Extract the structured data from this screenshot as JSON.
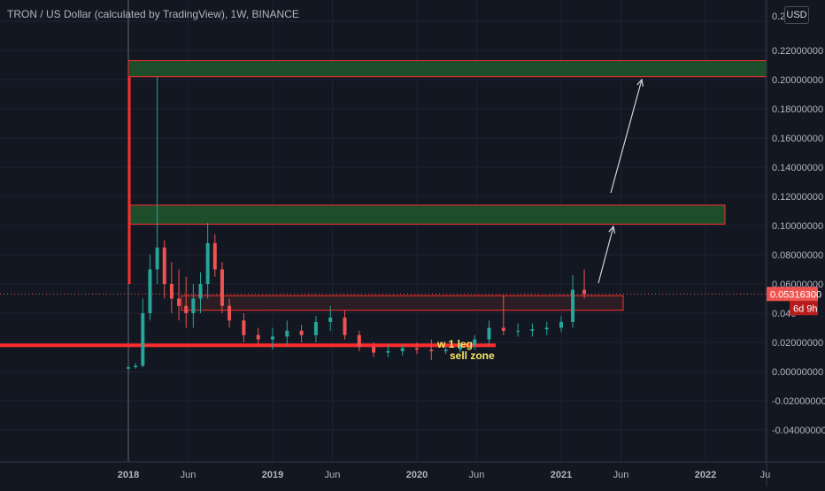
{
  "header": {
    "title": "TRON / US Dollar (calculated by TradingView), 1W, BINANCE",
    "currency_button": "USD"
  },
  "price_axis": {
    "ticks": [
      "0.2",
      "0.22000000",
      "0.20000000",
      "0.18000000",
      "0.16000000",
      "0.14000000",
      "0.12000000",
      "0.10000000",
      "0.08000000",
      "0.06000000",
      "0.040",
      "0.02000000",
      "0.00000000",
      "-0.02000000",
      "-0.04000000"
    ],
    "tick_values": [
      0.24,
      0.22,
      0.2,
      0.18,
      0.16,
      0.14,
      0.12,
      0.1,
      0.08,
      0.06,
      0.04,
      0.02,
      0.0,
      -0.02,
      -0.04
    ],
    "last_price_label": "0.05316300",
    "countdown_label": "6d 9h"
  },
  "time_axis": {
    "labels": [
      "2018",
      "Jun",
      "2019",
      "Jun",
      "2020",
      "Jun",
      "2021",
      "Jun",
      "2022",
      "Ju"
    ],
    "bold": [
      true,
      false,
      true,
      false,
      true,
      false,
      true,
      false,
      true,
      false
    ]
  },
  "annotations": {
    "text1": "w 1 leg",
    "text2": "sell zone"
  },
  "colors": {
    "background": "#131722",
    "up": "#26a69a",
    "down": "#ef5350",
    "line_red": "#ff2d2d",
    "zone_fill": "#1d4d2b",
    "text": "#b2b5be",
    "annotation": "#f5e663"
  },
  "chart_data": {
    "type": "candlestick",
    "symbol": "TRXUSD",
    "interval": "1W",
    "exchange": "BINANCE",
    "ylim": [
      -0.05,
      0.25
    ],
    "zones": [
      {
        "from": 0.202,
        "to": 0.213
      },
      {
        "from": 0.101,
        "to": 0.114
      },
      {
        "from": 0.042,
        "to": 0.052
      }
    ],
    "support_line": 0.018,
    "last_price": 0.053163,
    "series": [
      {
        "t": 0.0,
        "o": 0.002,
        "h": 0.004,
        "l": 0.001,
        "c": 0.003
      },
      {
        "t": 0.05,
        "o": 0.003,
        "h": 0.006,
        "l": 0.002,
        "c": 0.004
      },
      {
        "t": 0.1,
        "o": 0.004,
        "h": 0.05,
        "l": 0.003,
        "c": 0.04
      },
      {
        "t": 0.15,
        "o": 0.04,
        "h": 0.08,
        "l": 0.035,
        "c": 0.07
      },
      {
        "t": 0.2,
        "o": 0.07,
        "h": 0.202,
        "l": 0.06,
        "c": 0.085
      },
      {
        "t": 0.25,
        "o": 0.085,
        "h": 0.09,
        "l": 0.05,
        "c": 0.06
      },
      {
        "t": 0.3,
        "o": 0.06,
        "h": 0.075,
        "l": 0.04,
        "c": 0.05
      },
      {
        "t": 0.35,
        "o": 0.05,
        "h": 0.07,
        "l": 0.035,
        "c": 0.045
      },
      {
        "t": 0.4,
        "o": 0.045,
        "h": 0.065,
        "l": 0.03,
        "c": 0.04
      },
      {
        "t": 0.45,
        "o": 0.04,
        "h": 0.06,
        "l": 0.03,
        "c": 0.05
      },
      {
        "t": 0.5,
        "o": 0.05,
        "h": 0.068,
        "l": 0.04,
        "c": 0.06
      },
      {
        "t": 0.55,
        "o": 0.06,
        "h": 0.102,
        "l": 0.05,
        "c": 0.088
      },
      {
        "t": 0.6,
        "o": 0.088,
        "h": 0.094,
        "l": 0.065,
        "c": 0.07
      },
      {
        "t": 0.65,
        "o": 0.07,
        "h": 0.075,
        "l": 0.04,
        "c": 0.045
      },
      {
        "t": 0.7,
        "o": 0.045,
        "h": 0.05,
        "l": 0.03,
        "c": 0.035
      },
      {
        "t": 0.8,
        "o": 0.035,
        "h": 0.04,
        "l": 0.02,
        "c": 0.025
      },
      {
        "t": 0.9,
        "o": 0.025,
        "h": 0.03,
        "l": 0.018,
        "c": 0.022
      },
      {
        "t": 1.0,
        "o": 0.022,
        "h": 0.03,
        "l": 0.015,
        "c": 0.024
      },
      {
        "t": 1.1,
        "o": 0.024,
        "h": 0.035,
        "l": 0.018,
        "c": 0.028
      },
      {
        "t": 1.2,
        "o": 0.028,
        "h": 0.032,
        "l": 0.02,
        "c": 0.025
      },
      {
        "t": 1.3,
        "o": 0.025,
        "h": 0.038,
        "l": 0.02,
        "c": 0.034
      },
      {
        "t": 1.4,
        "o": 0.034,
        "h": 0.045,
        "l": 0.028,
        "c": 0.037
      },
      {
        "t": 1.5,
        "o": 0.037,
        "h": 0.042,
        "l": 0.022,
        "c": 0.025
      },
      {
        "t": 1.6,
        "o": 0.025,
        "h": 0.028,
        "l": 0.014,
        "c": 0.017
      },
      {
        "t": 1.7,
        "o": 0.017,
        "h": 0.02,
        "l": 0.01,
        "c": 0.013
      },
      {
        "t": 1.8,
        "o": 0.013,
        "h": 0.018,
        "l": 0.01,
        "c": 0.014
      },
      {
        "t": 1.9,
        "o": 0.014,
        "h": 0.018,
        "l": 0.011,
        "c": 0.016
      },
      {
        "t": 2.0,
        "o": 0.016,
        "h": 0.02,
        "l": 0.012,
        "c": 0.015
      },
      {
        "t": 2.1,
        "o": 0.015,
        "h": 0.022,
        "l": 0.008,
        "c": 0.014
      },
      {
        "t": 2.2,
        "o": 0.014,
        "h": 0.017,
        "l": 0.012,
        "c": 0.015
      },
      {
        "t": 2.3,
        "o": 0.015,
        "h": 0.02,
        "l": 0.013,
        "c": 0.018
      },
      {
        "t": 2.4,
        "o": 0.018,
        "h": 0.025,
        "l": 0.015,
        "c": 0.022
      },
      {
        "t": 2.5,
        "o": 0.022,
        "h": 0.035,
        "l": 0.018,
        "c": 0.03
      },
      {
        "t": 2.6,
        "o": 0.03,
        "h": 0.052,
        "l": 0.025,
        "c": 0.028
      },
      {
        "t": 2.7,
        "o": 0.028,
        "h": 0.033,
        "l": 0.024,
        "c": 0.028
      },
      {
        "t": 2.8,
        "o": 0.028,
        "h": 0.033,
        "l": 0.024,
        "c": 0.029
      },
      {
        "t": 2.9,
        "o": 0.029,
        "h": 0.034,
        "l": 0.025,
        "c": 0.03
      },
      {
        "t": 3.0,
        "o": 0.03,
        "h": 0.038,
        "l": 0.027,
        "c": 0.034
      },
      {
        "t": 3.08,
        "o": 0.034,
        "h": 0.066,
        "l": 0.03,
        "c": 0.056
      },
      {
        "t": 3.16,
        "o": 0.056,
        "h": 0.07,
        "l": 0.05,
        "c": 0.053
      }
    ]
  }
}
